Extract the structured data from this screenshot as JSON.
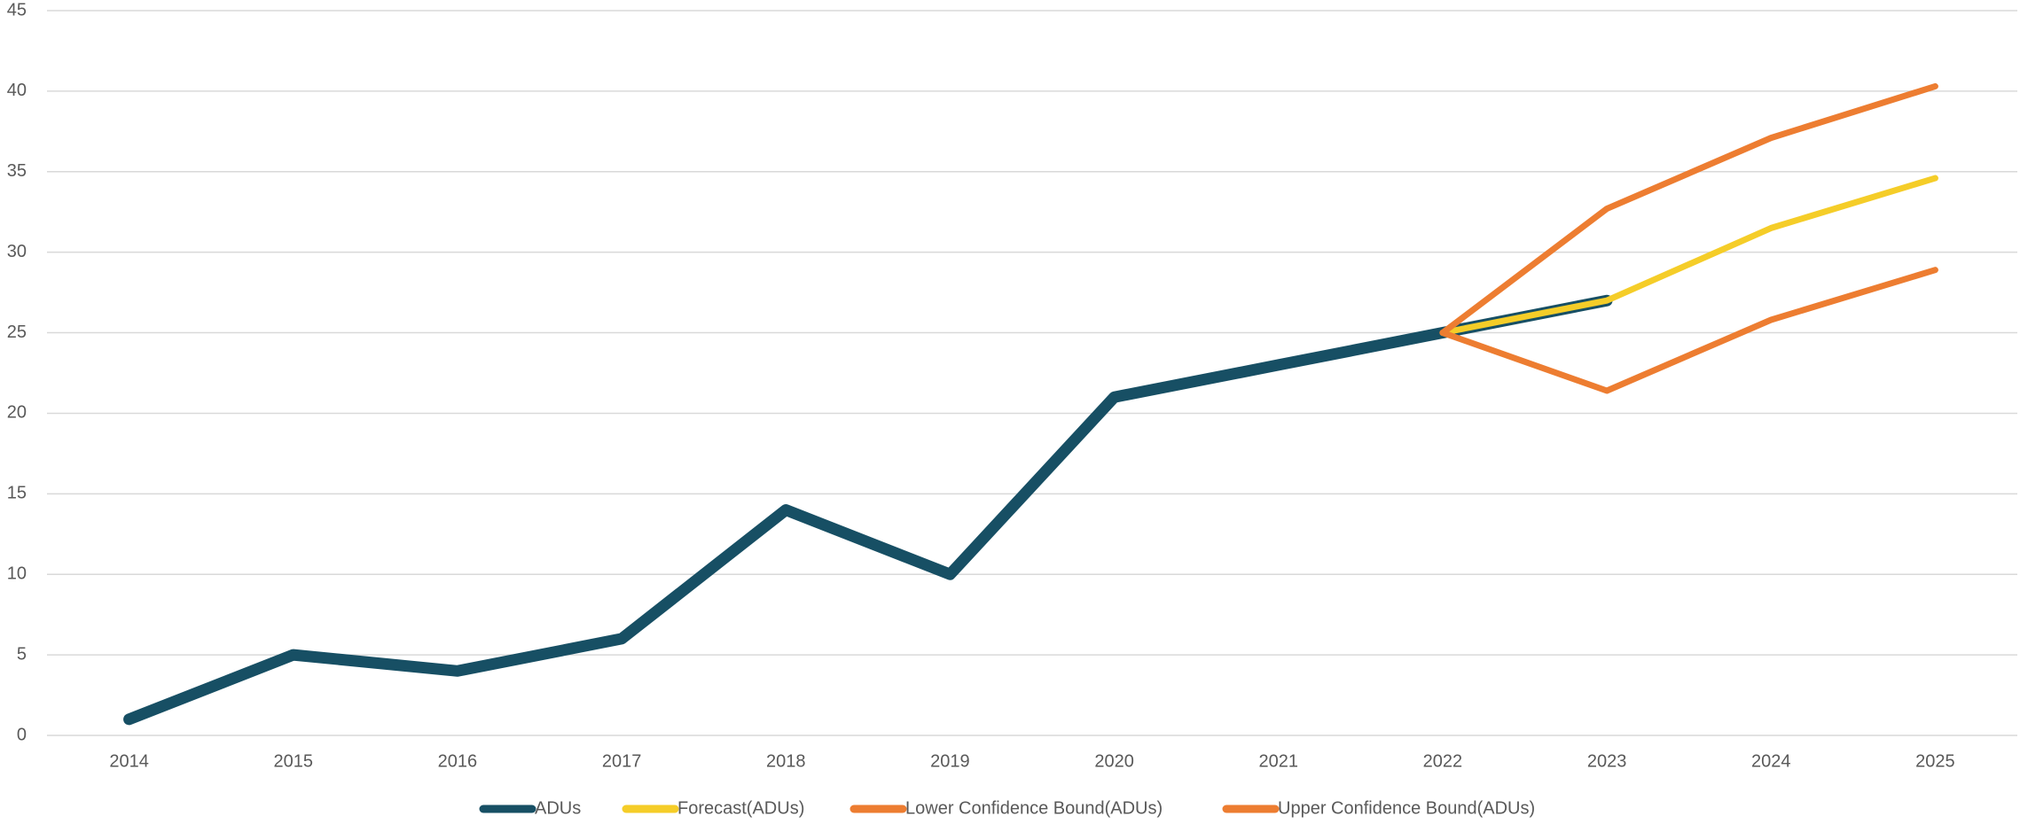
{
  "chart_data": {
    "type": "line",
    "categories": [
      "2014",
      "2015",
      "2016",
      "2017",
      "2018",
      "2019",
      "2020",
      "2021",
      "2022",
      "2023",
      "2024",
      "2025"
    ],
    "series": [
      {
        "name": "ADUs",
        "color": "#174f64",
        "values": [
          1,
          5,
          4,
          6,
          14,
          10,
          21,
          23,
          25,
          27,
          null,
          null
        ]
      },
      {
        "name": "Forecast(ADUs)",
        "color": "#f5cd28",
        "values": [
          null,
          null,
          null,
          null,
          null,
          null,
          null,
          null,
          25,
          27,
          31.5,
          34.6
        ]
      },
      {
        "name": "Lower Confidence Bound(ADUs)",
        "color": "#ed7d31",
        "values": [
          null,
          null,
          null,
          null,
          null,
          null,
          null,
          null,
          25,
          21.4,
          25.8,
          28.9
        ]
      },
      {
        "name": "Upper Confidence Bound(ADUs)",
        "color": "#ed7d31",
        "values": [
          null,
          null,
          null,
          null,
          null,
          null,
          null,
          null,
          25,
          32.7,
          37.1,
          40.3
        ]
      }
    ],
    "ylim": [
      0,
      45
    ],
    "yticks": [
      0,
      5,
      10,
      15,
      20,
      25,
      30,
      35,
      40,
      45
    ],
    "grid": true,
    "legend": "bottom"
  }
}
